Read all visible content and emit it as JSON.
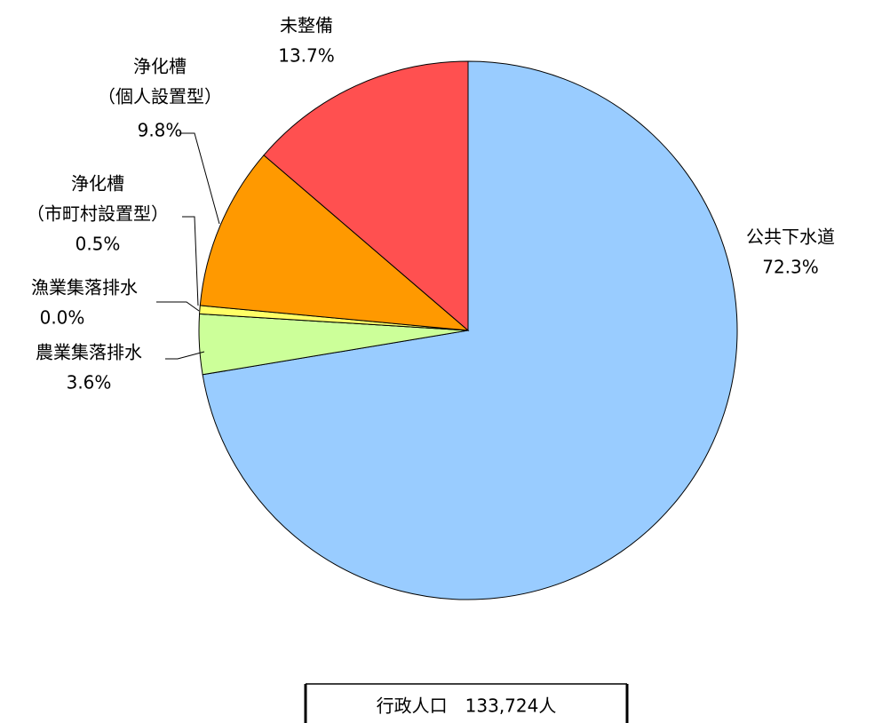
{
  "chart_data": {
    "type": "pie",
    "categories": [
      [
        "公共下水道"
      ],
      [
        "農業集落排水"
      ],
      [
        "漁業集落排水"
      ],
      [
        "浄化槽",
        "（市町村設置型）"
      ],
      [
        "浄化槽",
        "（個人設置型）"
      ],
      [
        "未整備"
      ]
    ],
    "values": [
      72.3,
      3.6,
      0.0,
      0.5,
      9.8,
      13.7
    ],
    "value_labels": [
      "72.3%",
      "3.6%",
      "0.0%",
      "0.5%",
      "9.8%",
      "13.7%"
    ],
    "colors": [
      "#99ccff",
      "#ccff99",
      "#ffff99",
      "#ffff66",
      "#ff9900",
      "#ff5050"
    ],
    "annotation": "行政人口　133,724人"
  }
}
